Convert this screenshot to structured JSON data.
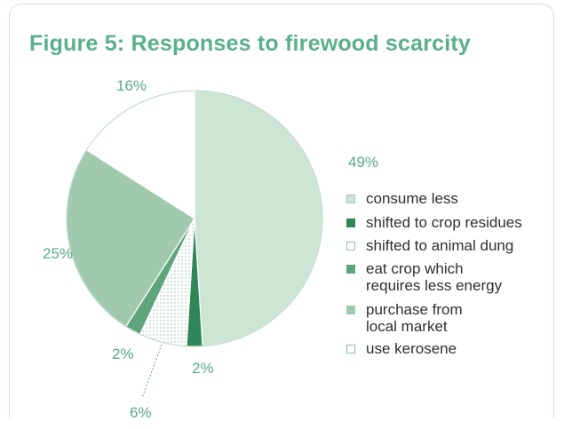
{
  "title": "Figure 5:  Responses to firewood scarcity",
  "chart_data": {
    "type": "pie",
    "title": "Figure 5:  Responses to firewood scarcity",
    "slices": [
      {
        "label": "consume less",
        "value": 49,
        "pct_label": "49%",
        "color": "#cde5d4"
      },
      {
        "label": "shifted to crop residues",
        "value": 2,
        "pct_label": "2%",
        "color": "#2f8659"
      },
      {
        "label": "shifted to animal dung",
        "value": 6,
        "pct_label": "6%",
        "color": "#ffffff",
        "pattern": "dotted"
      },
      {
        "label": "eat crop which requires less energy",
        "value": 2,
        "pct_label": "2%",
        "color": "#5ea57c"
      },
      {
        "label": "purchase from local market",
        "value": 25,
        "pct_label": "25%",
        "color": "#9fcaae"
      },
      {
        "label": "use kerosene",
        "value": 16,
        "pct_label": "16%",
        "color": "#ffffff"
      }
    ],
    "legend_position": "right"
  },
  "legend": {
    "items": [
      {
        "lines": [
          "consume less"
        ],
        "color": "#cde5d4",
        "border": "#9fcaae"
      },
      {
        "lines": [
          "shifted to crop residues"
        ],
        "color": "#2f8659",
        "border": "#2f8659"
      },
      {
        "lines": [
          "shifted to animal dung"
        ],
        "color": "#ffffff",
        "border": "#8fbda0"
      },
      {
        "lines": [
          "eat crop which",
          "requires less energy"
        ],
        "color": "#5ea57c",
        "border": "#5ea57c"
      },
      {
        "lines": [
          "purchase from",
          "local market"
        ],
        "color": "#9fcaae",
        "border": "#9fcaae"
      },
      {
        "lines": [
          "use kerosene"
        ],
        "color": "#ffffff",
        "border": "#8fbda0"
      }
    ]
  }
}
